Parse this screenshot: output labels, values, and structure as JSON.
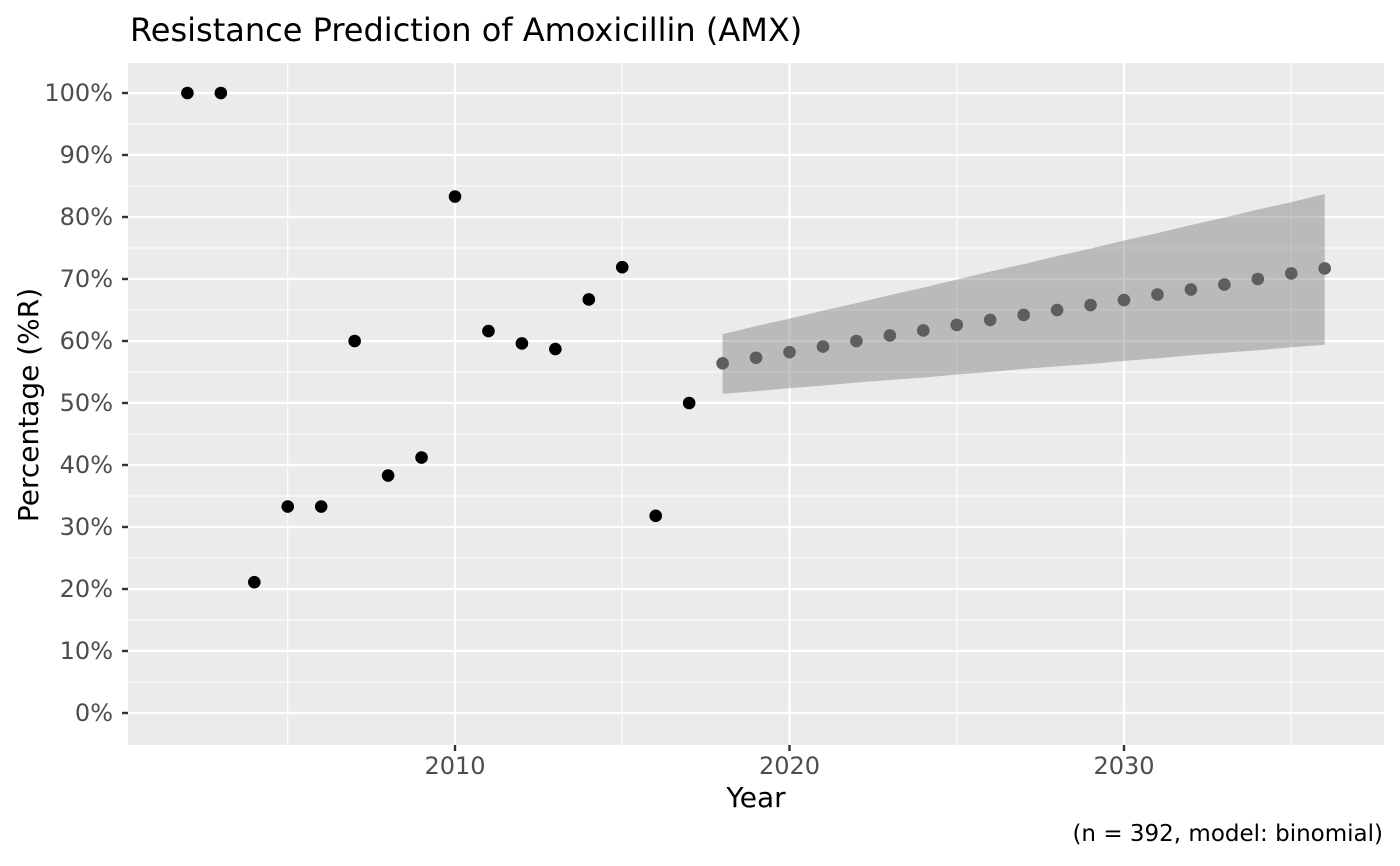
{
  "chart_data": {
    "type": "scatter",
    "title": "Resistance Prediction of Amoxicillin (AMX)",
    "xlabel": "Year",
    "ylabel": "Percentage (%R)",
    "caption": "(n = 392, model: binomial)",
    "grid": true,
    "legend": "none",
    "x_axis": {
      "tick_labels": [
        "2010",
        "2020",
        "2030"
      ],
      "tick_values": [
        2010,
        2020,
        2030
      ],
      "minor_tick_values": [
        2005,
        2015,
        2025,
        2035
      ],
      "range": [
        2000.2,
        2037.8
      ]
    },
    "y_axis": {
      "tick_labels": [
        "0%",
        "10%",
        "20%",
        "30%",
        "40%",
        "50%",
        "60%",
        "70%",
        "80%",
        "90%",
        "100%"
      ],
      "tick_values": [
        0,
        10,
        20,
        30,
        40,
        50,
        60,
        70,
        80,
        90,
        100
      ],
      "minor_tick_values": [
        5,
        15,
        25,
        35,
        45,
        55,
        65,
        75,
        85,
        95
      ],
      "range": [
        -5,
        105
      ]
    },
    "series": [
      {
        "name": "observed",
        "type": "points",
        "color": "#000000",
        "x": [
          2002,
          2003,
          2004,
          2005,
          2006,
          2007,
          2008,
          2009,
          2010,
          2011,
          2012,
          2013,
          2014,
          2015,
          2016,
          2017
        ],
        "y": [
          100,
          100,
          21.1,
          33.3,
          33.3,
          60.0,
          38.3,
          41.2,
          83.3,
          61.6,
          59.6,
          58.7,
          66.7,
          71.9,
          31.8,
          50.0
        ]
      },
      {
        "name": "predicted",
        "type": "points",
        "color": "#5e5e5e",
        "x": [
          2018,
          2019,
          2020,
          2021,
          2022,
          2023,
          2024,
          2025,
          2026,
          2027,
          2028,
          2029,
          2030,
          2031,
          2032,
          2033,
          2034,
          2035,
          2036
        ],
        "y": [
          56.4,
          57.3,
          58.2,
          59.1,
          60.0,
          60.9,
          61.7,
          62.6,
          63.4,
          64.2,
          65.0,
          65.8,
          66.6,
          67.5,
          68.3,
          69.1,
          70.0,
          70.9,
          71.7
        ]
      }
    ],
    "ribbon": {
      "name": "confidence-interval",
      "color": "#777777",
      "opacity": 0.42,
      "x": [
        2018,
        2019,
        2020,
        2021,
        2022,
        2023,
        2024,
        2025,
        2026,
        2027,
        2028,
        2029,
        2030,
        2031,
        2032,
        2033,
        2034,
        2035,
        2036
      ],
      "lower": [
        51.5,
        51.9,
        52.4,
        52.8,
        53.3,
        53.7,
        54.1,
        54.6,
        55.0,
        55.5,
        55.9,
        56.3,
        56.8,
        57.2,
        57.7,
        58.1,
        58.5,
        59.0,
        59.4
      ],
      "upper": [
        61.1,
        62.4,
        63.6,
        64.9,
        66.1,
        67.4,
        68.6,
        69.9,
        71.2,
        72.4,
        73.7,
        74.9,
        76.2,
        77.4,
        78.7,
        79.9,
        81.2,
        82.4,
        83.7
      ]
    }
  },
  "colors": {
    "background": "#ffffff",
    "panel": "#ebebeb",
    "grid": "#ffffff",
    "observed_point": "#000000",
    "predicted_point": "#5e5e5e",
    "ribbon": "#777777",
    "tick_text": "#4d4d4d",
    "tick_mark": "#333333",
    "text": "#000000"
  }
}
